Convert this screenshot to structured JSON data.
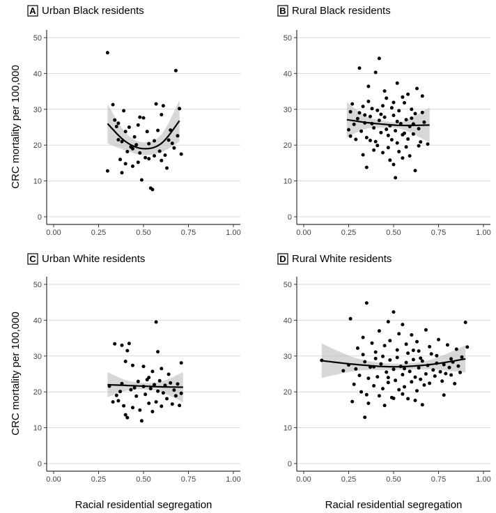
{
  "figure": {
    "ylabel": "CRC mortality per 100,000",
    "xlabel": "Racial residential segregation"
  },
  "chart_data": [
    {
      "type": "scatter",
      "panel": "A",
      "title": "Urban Black residents",
      "xlim": [
        0,
        1
      ],
      "ylim": [
        0,
        50
      ],
      "x_ticks": [
        "0.00",
        "0.25",
        "0.50",
        "0.75",
        "1.00"
      ],
      "y_ticks": [
        "0",
        "10",
        "20",
        "30",
        "40",
        "50"
      ],
      "grid": "horizontal",
      "points": [
        [
          0.3,
          45.8
        ],
        [
          0.68,
          40.8
        ],
        [
          0.3,
          12.8
        ],
        [
          0.33,
          31.3
        ],
        [
          0.34,
          27.0
        ],
        [
          0.35,
          25.2
        ],
        [
          0.36,
          21.5
        ],
        [
          0.37,
          16.0
        ],
        [
          0.38,
          12.3
        ],
        [
          0.38,
          21.0
        ],
        [
          0.39,
          29.6
        ],
        [
          0.4,
          14.8
        ],
        [
          0.41,
          18.2
        ],
        [
          0.42,
          25.0
        ],
        [
          0.43,
          19.5
        ],
        [
          0.44,
          14.1
        ],
        [
          0.45,
          22.3
        ],
        [
          0.46,
          20.1
        ],
        [
          0.47,
          15.2
        ],
        [
          0.48,
          27.8
        ],
        [
          0.48,
          17.8
        ],
        [
          0.49,
          10.3
        ],
        [
          0.5,
          27.6
        ],
        [
          0.51,
          16.5
        ],
        [
          0.52,
          23.8
        ],
        [
          0.53,
          16.2
        ],
        [
          0.54,
          8.0
        ],
        [
          0.55,
          7.6
        ],
        [
          0.56,
          21.2
        ],
        [
          0.57,
          31.5
        ],
        [
          0.58,
          24.1
        ],
        [
          0.59,
          18.3
        ],
        [
          0.6,
          28.5
        ],
        [
          0.61,
          31.0
        ],
        [
          0.62,
          17.2
        ],
        [
          0.63,
          13.6
        ],
        [
          0.64,
          21.4
        ],
        [
          0.65,
          24.2
        ],
        [
          0.66,
          20.5
        ],
        [
          0.67,
          19.2
        ],
        [
          0.69,
          22.6
        ],
        [
          0.7,
          30.2
        ],
        [
          0.71,
          17.5
        ],
        [
          0.36,
          26.1
        ],
        [
          0.44,
          19.0
        ],
        [
          0.53,
          20.4
        ],
        [
          0.6,
          15.7
        ],
        [
          0.4,
          23.8
        ],
        [
          0.47,
          25.6
        ],
        [
          0.56,
          17.0
        ]
      ],
      "fit": [
        [
          0.3,
          26.0
        ],
        [
          0.4,
          21.0
        ],
        [
          0.5,
          19.0
        ],
        [
          0.6,
          20.5
        ],
        [
          0.7,
          26.8
        ]
      ],
      "ci_upper": [
        [
          0.3,
          31.5
        ],
        [
          0.4,
          23.5
        ],
        [
          0.5,
          20.8
        ],
        [
          0.6,
          23.0
        ],
        [
          0.7,
          32.5
        ]
      ],
      "ci_lower": [
        [
          0.3,
          20.5
        ],
        [
          0.4,
          18.5
        ],
        [
          0.5,
          17.2
        ],
        [
          0.6,
          18.0
        ],
        [
          0.7,
          21.0
        ]
      ]
    },
    {
      "type": "scatter",
      "panel": "B",
      "title": "Rural Black residents",
      "xlim": [
        0,
        1
      ],
      "ylim": [
        0,
        50
      ],
      "x_ticks": [
        "0.00",
        "0.25",
        "0.50",
        "0.75",
        "1.00"
      ],
      "y_ticks": [
        "0",
        "10",
        "20",
        "30",
        "40",
        "50"
      ],
      "grid": "horizontal",
      "points": [
        [
          0.42,
          44.2
        ],
        [
          0.31,
          41.5
        ],
        [
          0.4,
          40.3
        ],
        [
          0.36,
          36.4
        ],
        [
          0.52,
          37.3
        ],
        [
          0.63,
          35.8
        ],
        [
          0.58,
          34.2
        ],
        [
          0.46,
          33.1
        ],
        [
          0.66,
          33.7
        ],
        [
          0.27,
          31.5
        ],
        [
          0.33,
          30.8
        ],
        [
          0.38,
          30.2
        ],
        [
          0.41,
          29.7
        ],
        [
          0.44,
          31.0
        ],
        [
          0.49,
          30.4
        ],
        [
          0.53,
          29.6
        ],
        [
          0.56,
          31.8
        ],
        [
          0.6,
          30.0
        ],
        [
          0.25,
          24.3
        ],
        [
          0.26,
          22.5
        ],
        [
          0.28,
          25.8
        ],
        [
          0.29,
          21.6
        ],
        [
          0.3,
          27.4
        ],
        [
          0.32,
          23.9
        ],
        [
          0.34,
          26.2
        ],
        [
          0.35,
          22.1
        ],
        [
          0.37,
          28.0
        ],
        [
          0.39,
          24.8
        ],
        [
          0.4,
          21.0
        ],
        [
          0.42,
          26.9
        ],
        [
          0.43,
          23.5
        ],
        [
          0.45,
          27.8
        ],
        [
          0.47,
          22.7
        ],
        [
          0.48,
          25.4
        ],
        [
          0.5,
          28.3
        ],
        [
          0.51,
          24.0
        ],
        [
          0.52,
          20.6
        ],
        [
          0.54,
          26.0
        ],
        [
          0.55,
          22.9
        ],
        [
          0.57,
          27.1
        ],
        [
          0.58,
          21.7
        ],
        [
          0.59,
          25.2
        ],
        [
          0.61,
          23.1
        ],
        [
          0.62,
          28.8
        ],
        [
          0.64,
          24.6
        ],
        [
          0.65,
          20.9
        ],
        [
          0.67,
          26.4
        ],
        [
          0.69,
          20.3
        ],
        [
          0.33,
          17.3
        ],
        [
          0.35,
          13.8
        ],
        [
          0.39,
          18.6
        ],
        [
          0.44,
          17.9
        ],
        [
          0.47,
          19.3
        ],
        [
          0.48,
          15.8
        ],
        [
          0.5,
          14.6
        ],
        [
          0.51,
          10.9
        ],
        [
          0.53,
          18.2
        ],
        [
          0.55,
          16.4
        ],
        [
          0.57,
          19.5
        ],
        [
          0.59,
          17.0
        ],
        [
          0.62,
          12.9
        ],
        [
          0.64,
          19.8
        ],
        [
          0.36,
          32.2
        ],
        [
          0.45,
          35.1
        ],
        [
          0.5,
          31.9
        ],
        [
          0.55,
          33.4
        ],
        [
          0.31,
          29.0
        ],
        [
          0.43,
          28.6
        ],
        [
          0.6,
          27.5
        ],
        [
          0.37,
          21.3
        ],
        [
          0.41,
          19.9
        ],
        [
          0.46,
          24.4
        ],
        [
          0.52,
          26.6
        ],
        [
          0.56,
          23.3
        ],
        [
          0.49,
          21.5
        ],
        [
          0.38,
          26.0
        ],
        [
          0.61,
          25.9
        ],
        [
          0.26,
          29.3
        ],
        [
          0.34,
          28.4
        ],
        [
          0.66,
          29.1
        ]
      ],
      "fit": [
        [
          0.24,
          27.1
        ],
        [
          0.35,
          26.3
        ],
        [
          0.45,
          25.8
        ],
        [
          0.55,
          25.5
        ],
        [
          0.7,
          25.6
        ]
      ],
      "ci_upper": [
        [
          0.24,
          32.0
        ],
        [
          0.35,
          28.0
        ],
        [
          0.45,
          26.8
        ],
        [
          0.55,
          26.6
        ],
        [
          0.7,
          30.5
        ]
      ],
      "ci_lower": [
        [
          0.24,
          22.2
        ],
        [
          0.35,
          24.6
        ],
        [
          0.45,
          24.8
        ],
        [
          0.55,
          24.4
        ],
        [
          0.7,
          20.7
        ]
      ]
    },
    {
      "type": "scatter",
      "panel": "C",
      "title": "Urban White residents",
      "xlim": [
        0,
        1
      ],
      "ylim": [
        0,
        50
      ],
      "x_ticks": [
        "0.00",
        "0.25",
        "0.50",
        "0.75",
        "1.00"
      ],
      "y_ticks": [
        "0",
        "10",
        "20",
        "30",
        "40",
        "50"
      ],
      "grid": "horizontal",
      "points": [
        [
          0.57,
          39.5
        ],
        [
          0.34,
          33.4
        ],
        [
          0.38,
          33.0
        ],
        [
          0.42,
          33.5
        ],
        [
          0.41,
          31.5
        ],
        [
          0.58,
          31.2
        ],
        [
          0.4,
          28.5
        ],
        [
          0.71,
          28.1
        ],
        [
          0.44,
          27.4
        ],
        [
          0.5,
          27.1
        ],
        [
          0.6,
          26.5
        ],
        [
          0.55,
          25.7
        ],
        [
          0.64,
          24.9
        ],
        [
          0.31,
          21.6
        ],
        [
          0.33,
          17.2
        ],
        [
          0.35,
          19.0
        ],
        [
          0.36,
          17.5
        ],
        [
          0.38,
          22.3
        ],
        [
          0.39,
          16.1
        ],
        [
          0.4,
          13.6
        ],
        [
          0.41,
          12.8
        ],
        [
          0.43,
          20.6
        ],
        [
          0.44,
          15.6
        ],
        [
          0.46,
          18.8
        ],
        [
          0.47,
          22.9
        ],
        [
          0.48,
          14.9
        ],
        [
          0.49,
          11.9
        ],
        [
          0.5,
          21.5
        ],
        [
          0.51,
          19.3
        ],
        [
          0.52,
          23.4
        ],
        [
          0.53,
          16.8
        ],
        [
          0.54,
          20.9
        ],
        [
          0.55,
          14.5
        ],
        [
          0.56,
          22.0
        ],
        [
          0.57,
          17.2
        ],
        [
          0.58,
          20.2
        ],
        [
          0.59,
          23.1
        ],
        [
          0.6,
          16.0
        ],
        [
          0.61,
          19.7
        ],
        [
          0.62,
          21.8
        ],
        [
          0.63,
          18.1
        ],
        [
          0.65,
          22.5
        ],
        [
          0.66,
          16.6
        ],
        [
          0.67,
          20.5
        ],
        [
          0.68,
          18.9
        ],
        [
          0.69,
          22.2
        ],
        [
          0.7,
          16.2
        ],
        [
          0.71,
          19.6
        ],
        [
          0.45,
          21.1
        ],
        [
          0.53,
          24.0
        ],
        [
          0.37,
          20.1
        ]
      ],
      "fit": [
        [
          0.3,
          22.0
        ],
        [
          0.4,
          21.8
        ],
        [
          0.5,
          21.6
        ],
        [
          0.6,
          21.4
        ],
        [
          0.72,
          21.3
        ]
      ],
      "ci_upper": [
        [
          0.3,
          25.5
        ],
        [
          0.4,
          23.3
        ],
        [
          0.5,
          22.5
        ],
        [
          0.6,
          22.9
        ],
        [
          0.72,
          25.5
        ]
      ],
      "ci_lower": [
        [
          0.3,
          18.5
        ],
        [
          0.4,
          20.3
        ],
        [
          0.5,
          20.7
        ],
        [
          0.6,
          19.9
        ],
        [
          0.72,
          17.1
        ]
      ]
    },
    {
      "type": "scatter",
      "panel": "D",
      "title": "Rural White residents",
      "xlim": [
        0,
        1
      ],
      "ylim": [
        0,
        50
      ],
      "x_ticks": [
        "0.00",
        "0.25",
        "0.50",
        "0.75",
        "1.00"
      ],
      "y_ticks": [
        "0",
        "10",
        "20",
        "30",
        "40",
        "50"
      ],
      "grid": "horizontal",
      "points": [
        [
          0.35,
          44.8
        ],
        [
          0.5,
          42.3
        ],
        [
          0.26,
          40.4
        ],
        [
          0.47,
          39.6
        ],
        [
          0.55,
          38.8
        ],
        [
          0.9,
          39.4
        ],
        [
          0.68,
          37.3
        ],
        [
          0.42,
          37.0
        ],
        [
          0.6,
          35.9
        ],
        [
          0.33,
          35.2
        ],
        [
          0.75,
          34.6
        ],
        [
          0.8,
          33.1
        ],
        [
          0.3,
          32.2
        ],
        [
          0.38,
          33.6
        ],
        [
          0.45,
          32.9
        ],
        [
          0.52,
          31.7
        ],
        [
          0.58,
          30.8
        ],
        [
          0.64,
          31.4
        ],
        [
          0.71,
          30.6
        ],
        [
          0.85,
          31.9
        ],
        [
          0.91,
          32.5
        ],
        [
          0.1,
          28.8
        ],
        [
          0.22,
          25.9
        ],
        [
          0.25,
          27.5
        ],
        [
          0.28,
          22.1
        ],
        [
          0.29,
          26.4
        ],
        [
          0.31,
          24.6
        ],
        [
          0.32,
          20.0
        ],
        [
          0.34,
          28.4
        ],
        [
          0.35,
          19.2
        ],
        [
          0.36,
          23.8
        ],
        [
          0.37,
          26.9
        ],
        [
          0.39,
          21.7
        ],
        [
          0.4,
          29.3
        ],
        [
          0.41,
          24.2
        ],
        [
          0.43,
          27.8
        ],
        [
          0.44,
          20.9
        ],
        [
          0.46,
          25.5
        ],
        [
          0.47,
          22.6
        ],
        [
          0.48,
          28.9
        ],
        [
          0.49,
          18.4
        ],
        [
          0.5,
          26.3
        ],
        [
          0.51,
          23.2
        ],
        [
          0.52,
          29.6
        ],
        [
          0.53,
          20.6
        ],
        [
          0.54,
          27.1
        ],
        [
          0.55,
          24.8
        ],
        [
          0.56,
          21.4
        ],
        [
          0.57,
          28.2
        ],
        [
          0.58,
          18.1
        ],
        [
          0.59,
          25.7
        ],
        [
          0.6,
          22.8
        ],
        [
          0.61,
          29.0
        ],
        [
          0.62,
          24.1
        ],
        [
          0.63,
          20.3
        ],
        [
          0.64,
          26.7
        ],
        [
          0.65,
          23.5
        ],
        [
          0.66,
          28.6
        ],
        [
          0.67,
          21.9
        ],
        [
          0.68,
          25.0
        ],
        [
          0.69,
          27.4
        ],
        [
          0.7,
          22.4
        ],
        [
          0.72,
          26.1
        ],
        [
          0.73,
          24.4
        ],
        [
          0.74,
          28.0
        ],
        [
          0.76,
          25.6
        ],
        [
          0.77,
          23.0
        ],
        [
          0.78,
          27.6
        ],
        [
          0.79,
          25.1
        ],
        [
          0.81,
          26.8
        ],
        [
          0.82,
          24.7
        ],
        [
          0.83,
          28.3
        ],
        [
          0.84,
          22.3
        ],
        [
          0.86,
          27.2
        ],
        [
          0.87,
          25.4
        ],
        [
          0.88,
          29.7
        ],
        [
          0.27,
          17.3
        ],
        [
          0.34,
          12.9
        ],
        [
          0.36,
          16.8
        ],
        [
          0.42,
          18.9
        ],
        [
          0.45,
          16.2
        ],
        [
          0.5,
          18.2
        ],
        [
          0.55,
          19.4
        ],
        [
          0.62,
          17.6
        ],
        [
          0.66,
          16.4
        ],
        [
          0.78,
          19.1
        ],
        [
          0.33,
          30.4
        ],
        [
          0.4,
          31.1
        ],
        [
          0.48,
          34.3
        ],
        [
          0.53,
          36.2
        ],
        [
          0.57,
          33.3
        ],
        [
          0.63,
          34.0
        ],
        [
          0.7,
          32.6
        ],
        [
          0.44,
          29.9
        ],
        [
          0.61,
          31.6
        ],
        [
          0.39,
          27.0
        ],
        [
          0.47,
          24.0
        ],
        [
          0.56,
          26.5
        ],
        [
          0.65,
          29.4
        ],
        [
          0.74,
          30.1
        ],
        [
          0.82,
          29.2
        ]
      ],
      "fit": [
        [
          0.1,
          28.7
        ],
        [
          0.3,
          27.6
        ],
        [
          0.5,
          27.0
        ],
        [
          0.7,
          27.6
        ],
        [
          0.9,
          29.2
        ]
      ],
      "ci_upper": [
        [
          0.1,
          33.5
        ],
        [
          0.3,
          29.3
        ],
        [
          0.5,
          27.9
        ],
        [
          0.7,
          28.9
        ],
        [
          0.9,
          33.0
        ]
      ],
      "ci_lower": [
        [
          0.1,
          23.9
        ],
        [
          0.3,
          25.9
        ],
        [
          0.5,
          26.1
        ],
        [
          0.7,
          26.3
        ],
        [
          0.9,
          25.4
        ]
      ]
    }
  ]
}
